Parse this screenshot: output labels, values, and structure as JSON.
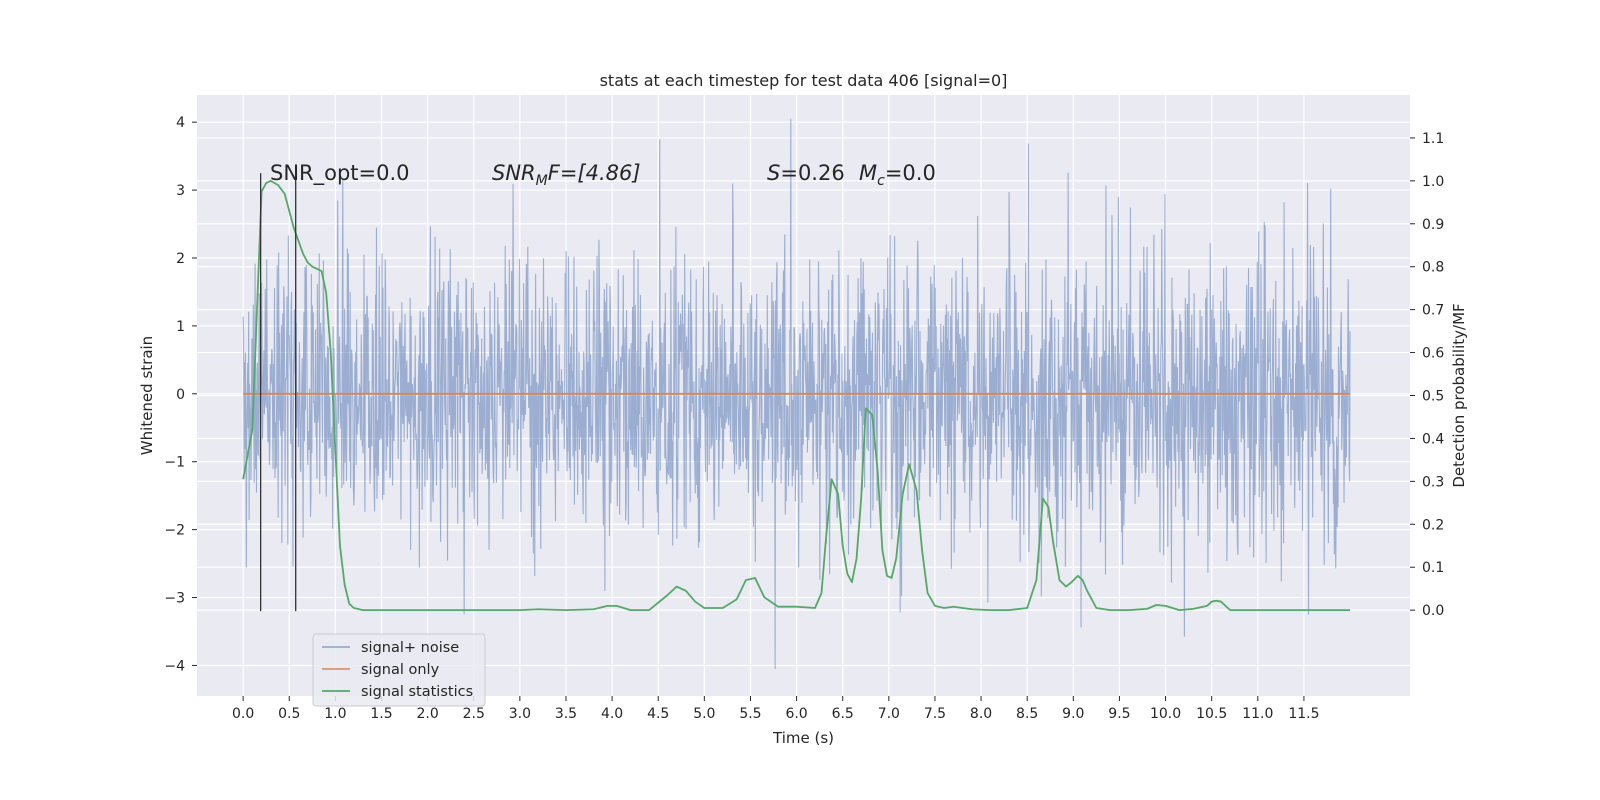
{
  "chart_data": {
    "type": "line",
    "title": "stats at each timestep for test data 406 [signal=0]",
    "xlabel": "Time (s)",
    "ylabel_left": "Whitened strain",
    "ylabel_right": "Detection probability/MF",
    "xlim": [
      -0.5,
      12.65
    ],
    "ylim_left": [
      -4.45,
      4.4
    ],
    "ylim_right": [
      -0.2,
      1.2
    ],
    "x_ticks": [
      0.0,
      0.5,
      1.0,
      1.5,
      2.0,
      2.5,
      3.0,
      3.5,
      4.0,
      4.5,
      5.0,
      5.5,
      6.0,
      6.5,
      7.0,
      7.5,
      8.0,
      8.5,
      9.0,
      9.5,
      10.0,
      10.5,
      11.0,
      11.5
    ],
    "x_tick_labels": [
      "0.0",
      "0.5",
      "1.0",
      "1.5",
      "2.0",
      "2.5",
      "3.0",
      "3.5",
      "4.0",
      "4.5",
      "5.0",
      "5.5",
      "6.0",
      "6.5",
      "7.0",
      "7.5",
      "8.0",
      "8.5",
      "9.0",
      "9.5",
      "10.0",
      "10.5",
      "11.0",
      "11.5"
    ],
    "y_left_ticks": [
      -4,
      -3,
      -2,
      -1,
      0,
      1,
      2,
      3,
      4
    ],
    "y_left_tick_labels": [
      "−4",
      "−3",
      "−2",
      "−1",
      "0",
      "1",
      "2",
      "3",
      "4"
    ],
    "y_right_ticks": [
      0.0,
      0.1,
      0.2,
      0.3,
      0.4,
      0.5,
      0.6,
      0.7,
      0.8,
      0.9,
      1.0,
      1.1
    ],
    "y_right_tick_labels": [
      "0.0",
      "0.1",
      "0.2",
      "0.3",
      "0.4",
      "0.5",
      "0.6",
      "0.7",
      "0.8",
      "0.9",
      "1.0",
      "1.1"
    ],
    "grid": true,
    "legend_position": "lower-left",
    "annotations": {
      "snr_opt": "SNR_opt=0.0",
      "snr_mf_base": "SNR",
      "snr_mf_sub": "M",
      "snr_mf_rest": "F=[4.86]",
      "s_symbol": "S",
      "s_value": "=0.26",
      "mc_symbol": "M",
      "mc_sub": "c",
      "mc_value": "=0.0"
    },
    "vertical_markers": [
      {
        "x": 0.19,
        "y_range": [
          -3.2,
          3.25
        ]
      },
      {
        "x": 0.57,
        "y_range": [
          -3.2,
          3.25
        ]
      }
    ],
    "series": [
      {
        "name": "signal+ noise",
        "axis": "left",
        "color": "#4c72b0",
        "kind": "noise",
        "x_range": [
          0.0,
          12.0
        ],
        "std": 1.05,
        "y_range": [
          -4.05,
          4.05
        ]
      },
      {
        "name": "signal only",
        "axis": "left",
        "color": "#dd8452",
        "x": [
          0.0,
          12.0
        ],
        "y": [
          0.0,
          0.0
        ]
      },
      {
        "name": "signal statistics",
        "axis": "right",
        "color": "#55a868",
        "x": [
          0.0,
          0.1,
          0.2,
          0.25,
          0.3,
          0.38,
          0.45,
          0.5,
          0.55,
          0.6,
          0.65,
          0.7,
          0.75,
          0.8,
          0.85,
          0.9,
          0.95,
          1.0,
          1.05,
          1.1,
          1.15,
          1.2,
          1.3,
          1.5,
          2.0,
          2.5,
          3.0,
          3.2,
          3.5,
          3.8,
          3.95,
          4.05,
          4.2,
          4.4,
          4.6,
          4.7,
          4.8,
          4.9,
          5.0,
          5.2,
          5.35,
          5.45,
          5.55,
          5.65,
          5.8,
          6.0,
          6.2,
          6.27,
          6.32,
          6.38,
          6.45,
          6.5,
          6.55,
          6.6,
          6.65,
          6.7,
          6.75,
          6.82,
          6.88,
          6.93,
          6.98,
          7.03,
          7.08,
          7.15,
          7.22,
          7.3,
          7.36,
          7.42,
          7.5,
          7.6,
          7.7,
          7.9,
          8.1,
          8.3,
          8.5,
          8.6,
          8.67,
          8.73,
          8.78,
          8.85,
          8.92,
          8.98,
          9.05,
          9.1,
          9.15,
          9.25,
          9.4,
          9.6,
          9.8,
          9.9,
          10.0,
          10.15,
          10.3,
          10.45,
          10.5,
          10.55,
          10.6,
          10.7,
          11.0,
          11.5,
          12.0
        ],
        "y": [
          0.305,
          0.42,
          0.975,
          0.995,
          1.0,
          0.99,
          0.97,
          0.93,
          0.89,
          0.86,
          0.83,
          0.81,
          0.8,
          0.795,
          0.79,
          0.74,
          0.6,
          0.37,
          0.15,
          0.06,
          0.015,
          0.005,
          0.0,
          0.0,
          0.0,
          0.0,
          0.0,
          0.002,
          0.0,
          0.002,
          0.01,
          0.01,
          0.0,
          0.0,
          0.035,
          0.055,
          0.045,
          0.02,
          0.005,
          0.005,
          0.025,
          0.07,
          0.075,
          0.03,
          0.008,
          0.008,
          0.005,
          0.04,
          0.17,
          0.305,
          0.27,
          0.15,
          0.085,
          0.065,
          0.12,
          0.26,
          0.47,
          0.455,
          0.32,
          0.14,
          0.08,
          0.075,
          0.12,
          0.27,
          0.34,
          0.28,
          0.14,
          0.04,
          0.01,
          0.005,
          0.008,
          0.002,
          0.0,
          0.0,
          0.005,
          0.07,
          0.26,
          0.24,
          0.16,
          0.07,
          0.055,
          0.065,
          0.08,
          0.07,
          0.045,
          0.005,
          0.0,
          0.0,
          0.003,
          0.012,
          0.01,
          0.0,
          0.003,
          0.01,
          0.02,
          0.022,
          0.02,
          0.0,
          0.0,
          0.0,
          0.0
        ]
      }
    ]
  }
}
